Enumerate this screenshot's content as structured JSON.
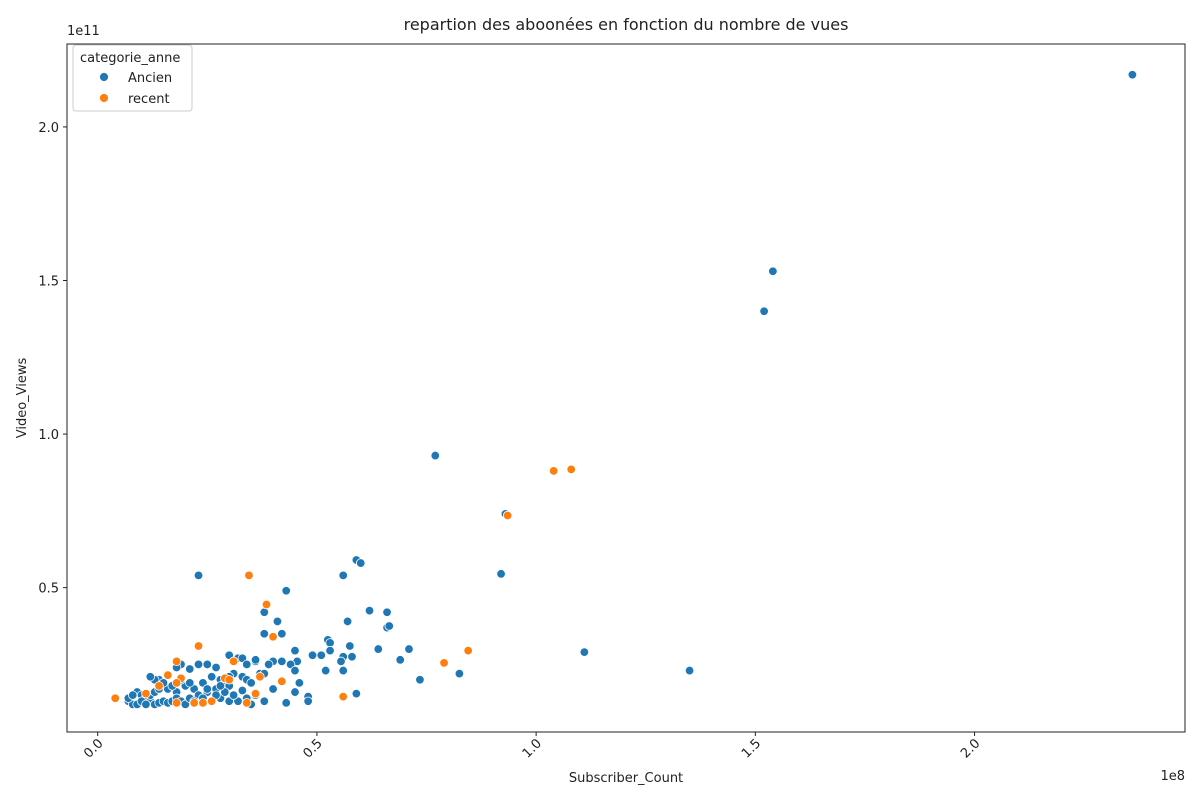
{
  "chart_data": {
    "type": "scatter",
    "title": "repartion des aboonées en fonction du nombre de vues",
    "xlabel": "Subscriber_Count",
    "ylabel": "Video_Views",
    "x_exponent": "1e8",
    "y_exponent": "1e11",
    "xlim": [
      -0.07,
      2.48
    ],
    "ylim": [
      0.03,
      2.27
    ],
    "xticks": [
      0.0,
      0.5,
      1.0,
      1.5,
      2.0
    ],
    "xtick_labels": [
      "0.0",
      "0.5",
      "1.0",
      "1.5",
      "2.0"
    ],
    "yticks": [
      0.5,
      1.0,
      1.5,
      2.0
    ],
    "ytick_labels": [
      "0.5",
      "1.0",
      "1.5",
      "2.0"
    ],
    "grid": false,
    "legend": {
      "title": "categorie_anne",
      "placement": "top-left"
    },
    "series": [
      {
        "name": "Ancien",
        "color": "#1f77b4",
        "points": [
          [
            2.36,
            2.17
          ],
          [
            1.54,
            1.53
          ],
          [
            1.52,
            1.4
          ],
          [
            0.77,
            0.93
          ],
          [
            0.93,
            0.74
          ],
          [
            0.92,
            0.545
          ],
          [
            0.59,
            0.59
          ],
          [
            0.6,
            0.58
          ],
          [
            0.56,
            0.54
          ],
          [
            0.23,
            0.54
          ],
          [
            0.43,
            0.49
          ],
          [
            0.62,
            0.425
          ],
          [
            0.66,
            0.42
          ],
          [
            0.38,
            0.42
          ],
          [
            0.57,
            0.39
          ],
          [
            0.41,
            0.39
          ],
          [
            0.66,
            0.37
          ],
          [
            0.665,
            0.375
          ],
          [
            0.38,
            0.35
          ],
          [
            0.42,
            0.35
          ],
          [
            0.525,
            0.33
          ],
          [
            0.53,
            0.32
          ],
          [
            0.575,
            0.31
          ],
          [
            0.64,
            0.3
          ],
          [
            0.71,
            0.3
          ],
          [
            0.45,
            0.295
          ],
          [
            0.53,
            0.295
          ],
          [
            1.11,
            0.29
          ],
          [
            0.49,
            0.28
          ],
          [
            0.51,
            0.28
          ],
          [
            0.56,
            0.275
          ],
          [
            0.58,
            0.275
          ],
          [
            0.69,
            0.265
          ],
          [
            0.455,
            0.26
          ],
          [
            0.42,
            0.26
          ],
          [
            0.4,
            0.26
          ],
          [
            0.36,
            0.26
          ],
          [
            0.555,
            0.26
          ],
          [
            0.44,
            0.25
          ],
          [
            0.39,
            0.25
          ],
          [
            0.52,
            0.23
          ],
          [
            0.56,
            0.23
          ],
          [
            0.45,
            0.23
          ],
          [
            1.35,
            0.23
          ],
          [
            0.825,
            0.22
          ],
          [
            0.735,
            0.2
          ],
          [
            0.46,
            0.19
          ],
          [
            0.4,
            0.17
          ],
          [
            0.45,
            0.16
          ],
          [
            0.59,
            0.155
          ],
          [
            0.48,
            0.145
          ],
          [
            0.48,
            0.13
          ],
          [
            0.43,
            0.125
          ],
          [
            0.38,
            0.13
          ],
          [
            0.35,
            0.12
          ],
          [
            0.3,
            0.28
          ],
          [
            0.32,
            0.27
          ],
          [
            0.33,
            0.27
          ],
          [
            0.36,
            0.265
          ],
          [
            0.31,
            0.22
          ],
          [
            0.27,
            0.24
          ],
          [
            0.25,
            0.25
          ],
          [
            0.23,
            0.25
          ],
          [
            0.19,
            0.25
          ],
          [
            0.18,
            0.24
          ],
          [
            0.21,
            0.235
          ],
          [
            0.26,
            0.21
          ],
          [
            0.28,
            0.2
          ],
          [
            0.29,
            0.19
          ],
          [
            0.33,
            0.21
          ],
          [
            0.34,
            0.2
          ],
          [
            0.35,
            0.19
          ],
          [
            0.37,
            0.22
          ],
          [
            0.38,
            0.22
          ],
          [
            0.3,
            0.18
          ],
          [
            0.27,
            0.17
          ],
          [
            0.25,
            0.16
          ],
          [
            0.22,
            0.17
          ],
          [
            0.2,
            0.18
          ],
          [
            0.18,
            0.16
          ],
          [
            0.16,
            0.17
          ],
          [
            0.14,
            0.2
          ],
          [
            0.13,
            0.2
          ],
          [
            0.12,
            0.21
          ],
          [
            0.15,
            0.19
          ],
          [
            0.17,
            0.18
          ],
          [
            0.19,
            0.2
          ],
          [
            0.21,
            0.19
          ],
          [
            0.23,
            0.15
          ],
          [
            0.24,
            0.14
          ],
          [
            0.26,
            0.13
          ],
          [
            0.28,
            0.14
          ],
          [
            0.3,
            0.13
          ],
          [
            0.32,
            0.13
          ],
          [
            0.34,
            0.14
          ],
          [
            0.36,
            0.15
          ],
          [
            0.09,
            0.16
          ],
          [
            0.1,
            0.15
          ],
          [
            0.11,
            0.14
          ],
          [
            0.12,
            0.13
          ],
          [
            0.13,
            0.12
          ],
          [
            0.14,
            0.125
          ],
          [
            0.15,
            0.13
          ],
          [
            0.16,
            0.125
          ],
          [
            0.17,
            0.13
          ],
          [
            0.18,
            0.14
          ],
          [
            0.19,
            0.13
          ],
          [
            0.2,
            0.12
          ],
          [
            0.21,
            0.14
          ],
          [
            0.22,
            0.13
          ],
          [
            0.07,
            0.13
          ],
          [
            0.08,
            0.12
          ],
          [
            0.09,
            0.12
          ],
          [
            0.1,
            0.13
          ],
          [
            0.11,
            0.12
          ],
          [
            0.07,
            0.14
          ],
          [
            0.08,
            0.15
          ],
          [
            0.12,
            0.15
          ],
          [
            0.13,
            0.16
          ],
          [
            0.14,
            0.17
          ],
          [
            0.24,
            0.19
          ],
          [
            0.25,
            0.17
          ],
          [
            0.27,
            0.15
          ],
          [
            0.29,
            0.16
          ],
          [
            0.31,
            0.15
          ],
          [
            0.33,
            0.165
          ],
          [
            0.26,
            0.21
          ],
          [
            0.28,
            0.18
          ],
          [
            0.3,
            0.21
          ],
          [
            0.34,
            0.25
          ]
        ]
      },
      {
        "name": "recent",
        "color": "#ff7f0e",
        "points": [
          [
            1.08,
            0.885
          ],
          [
            1.04,
            0.88
          ],
          [
            0.935,
            0.735
          ],
          [
            0.345,
            0.54
          ],
          [
            0.385,
            0.445
          ],
          [
            0.4,
            0.34
          ],
          [
            0.23,
            0.31
          ],
          [
            0.845,
            0.295
          ],
          [
            0.79,
            0.255
          ],
          [
            0.56,
            0.145
          ],
          [
            0.04,
            0.14
          ],
          [
            0.18,
            0.26
          ],
          [
            0.31,
            0.26
          ],
          [
            0.42,
            0.195
          ],
          [
            0.36,
            0.155
          ],
          [
            0.16,
            0.215
          ],
          [
            0.19,
            0.205
          ],
          [
            0.29,
            0.205
          ],
          [
            0.37,
            0.21
          ],
          [
            0.14,
            0.18
          ],
          [
            0.18,
            0.19
          ],
          [
            0.26,
            0.13
          ],
          [
            0.34,
            0.125
          ],
          [
            0.22,
            0.125
          ],
          [
            0.24,
            0.125
          ],
          [
            0.18,
            0.125
          ],
          [
            0.11,
            0.155
          ],
          [
            0.3,
            0.2
          ]
        ]
      }
    ]
  }
}
